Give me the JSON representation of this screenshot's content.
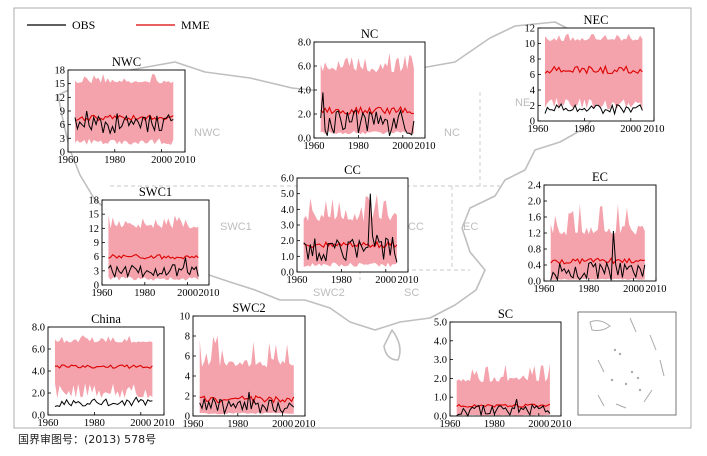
{
  "legend": {
    "obs_label": "OBS",
    "mme_label": "MME"
  },
  "colors": {
    "obs": "#000000",
    "mme": "#dd0000",
    "band": "#f4a3ad",
    "map": "#bfbfbf",
    "region_label": "#bdbdbd",
    "frame": "#000000"
  },
  "region_labels": [
    "NWC",
    "NC",
    "NE",
    "SWC1",
    "CC",
    "EC",
    "SWC2",
    "SC"
  ],
  "annotation": "国界审图号：(2013) 578号",
  "chart_data": [
    {
      "id": "nwc",
      "type": "line",
      "title": "NWC",
      "ylim": [
        0,
        18
      ],
      "yticks": [
        0,
        3,
        6,
        9,
        12,
        15,
        18
      ],
      "ytick_labels": [
        "0",
        "3",
        "6",
        "9",
        "12",
        "15",
        "18"
      ],
      "xlim": [
        1960,
        2010
      ],
      "xticks": [
        1960,
        1980,
        2000,
        2010
      ],
      "xtick_labels": [
        "1960",
        "1980",
        "2000",
        "2010"
      ],
      "band_low": 2.5,
      "band_high": 15.5,
      "band_spike": 2.0,
      "mme_level": 7.5,
      "mme_amp": 0.6,
      "obs_level": 6.5,
      "obs_amp": 2.5,
      "obs_peak_year": 1968,
      "obs_peak": 9,
      "seed": 11,
      "series": [
        "OBS",
        "MME"
      ]
    },
    {
      "id": "nc",
      "type": "line",
      "title": "NC",
      "ylim": [
        0,
        8
      ],
      "yticks": [
        0,
        2,
        4,
        6,
        8
      ],
      "ytick_labels": [
        "0.0",
        "2.0",
        "4.0",
        "6.0",
        "8.0"
      ],
      "xlim": [
        1960,
        2010
      ],
      "xticks": [
        1960,
        1980,
        2000,
        2010
      ],
      "xtick_labels": [
        "1960",
        "1980",
        "2000",
        "2010"
      ],
      "band_low": 0.5,
      "band_high": 5.8,
      "band_spike": 1.8,
      "mme_level": 2.3,
      "mme_amp": 0.3,
      "obs_level": 1.2,
      "obs_amp": 1.1,
      "obs_peak_year": 1964,
      "obs_peak": 3.8,
      "seed": 23,
      "series": [
        "OBS",
        "MME"
      ]
    },
    {
      "id": "nec",
      "type": "line",
      "title": "NEC",
      "ylim": [
        0,
        12
      ],
      "yticks": [
        0,
        2,
        4,
        6,
        8,
        10,
        12
      ],
      "ytick_labels": [
        "0",
        "2",
        "4",
        "6",
        "8",
        "10",
        "12"
      ],
      "xlim": [
        1960,
        2010
      ],
      "xticks": [
        1960,
        1980,
        2000,
        2010
      ],
      "xtick_labels": [
        "1960",
        "1980",
        "2000",
        "2010"
      ],
      "band_low": 2.5,
      "band_high": 10.5,
      "band_spike": 1.0,
      "mme_level": 6.6,
      "mme_amp": 0.5,
      "obs_level": 1.5,
      "obs_amp": 0.6,
      "obs_peak_year": 1970,
      "obs_peak": 2.2,
      "seed": 37,
      "series": [
        "OBS",
        "MME"
      ]
    },
    {
      "id": "swc1",
      "type": "line",
      "title": "SWC1",
      "ylim": [
        0,
        18
      ],
      "yticks": [
        0,
        3,
        6,
        9,
        12,
        15,
        18
      ],
      "ytick_labels": [
        "0",
        "3",
        "6",
        "9",
        "12",
        "15",
        "18"
      ],
      "xlim": [
        1960,
        2010
      ],
      "xticks": [
        1960,
        1980,
        2000,
        2010
      ],
      "xtick_labels": [
        "1960",
        "1980",
        "2000",
        "2010"
      ],
      "band_low": 1.5,
      "band_high": 12.5,
      "band_spike": 3.0,
      "mme_level": 6.0,
      "mme_amp": 0.5,
      "obs_level": 3.0,
      "obs_amp": 1.3,
      "obs_peak_year": 1999,
      "obs_peak": 5.8,
      "seed": 41,
      "series": [
        "OBS",
        "MME"
      ]
    },
    {
      "id": "cc",
      "type": "line",
      "title": "CC",
      "ylim": [
        0,
        6
      ],
      "yticks": [
        0,
        1,
        2,
        3,
        4,
        5,
        6
      ],
      "ytick_labels": [
        "0.0",
        "1.0",
        "2.0",
        "3.0",
        "4.0",
        "5.0",
        "6.0"
      ],
      "xlim": [
        1960,
        2010
      ],
      "xticks": [
        1960,
        1980,
        2000,
        2010
      ],
      "xtick_labels": [
        "1960",
        "1980",
        "2000",
        "2010"
      ],
      "band_low": 0.5,
      "band_high": 3.6,
      "band_spike": 1.8,
      "mme_level": 1.75,
      "mme_amp": 0.2,
      "obs_level": 1.5,
      "obs_amp": 0.9,
      "obs_peak_year": 1993,
      "obs_peak": 5.0,
      "seed": 53,
      "series": [
        "OBS",
        "MME"
      ]
    },
    {
      "id": "ec",
      "type": "line",
      "title": "EC",
      "ylim": [
        0,
        2.4
      ],
      "yticks": [
        0,
        0.4,
        0.8,
        1.2,
        1.6,
        2.0,
        2.4
      ],
      "ytick_labels": [
        "0.0",
        "0.4",
        "0.8",
        "1.2",
        "1.6",
        "2.0",
        "2.4"
      ],
      "xlim": [
        1960,
        2010
      ],
      "xticks": [
        1960,
        1980,
        2000,
        2010
      ],
      "xtick_labels": [
        "1960",
        "1980",
        "2000",
        "2010"
      ],
      "band_low": 0.05,
      "band_high": 1.3,
      "band_spike": 0.8,
      "mme_level": 0.5,
      "mme_amp": 0.07,
      "obs_level": 0.25,
      "obs_amp": 0.25,
      "obs_peak_year": 1991,
      "obs_peak": 1.25,
      "seed": 67,
      "series": [
        "OBS",
        "MME"
      ]
    },
    {
      "id": "china",
      "type": "line",
      "title": "China",
      "ylim": [
        0,
        8
      ],
      "yticks": [
        0,
        2,
        4,
        6,
        8
      ],
      "ytick_labels": [
        "0.0",
        "2.0",
        "4.0",
        "6.0",
        "8.0"
      ],
      "xlim": [
        1960,
        2010
      ],
      "xticks": [
        1960,
        1980,
        2000,
        2010
      ],
      "xtick_labels": [
        "1960",
        "1980",
        "2000",
        "2010"
      ],
      "band_low": 2.5,
      "band_high": 6.7,
      "band_spike": 0.7,
      "mme_level": 4.4,
      "mme_amp": 0.15,
      "obs_level": 1.1,
      "obs_amp": 0.35,
      "obs_peak_year": 1998,
      "obs_peak": 1.6,
      "seed": 79,
      "series": [
        "OBS",
        "MME"
      ]
    },
    {
      "id": "swc2",
      "type": "line",
      "title": "SWC2",
      "ylim": [
        0,
        10
      ],
      "yticks": [
        0,
        2,
        4,
        6,
        8,
        10
      ],
      "ytick_labels": [
        "0",
        "2",
        "4",
        "6",
        "8",
        "10"
      ],
      "xlim": [
        1960,
        2010
      ],
      "xticks": [
        1960,
        1980,
        2000,
        2010
      ],
      "xtick_labels": [
        "1960",
        "1980",
        "2000",
        "2010"
      ],
      "band_low": 0.3,
      "band_high": 5.5,
      "band_spike": 3.5,
      "mme_level": 1.7,
      "mme_amp": 0.35,
      "obs_level": 1.0,
      "obs_amp": 0.8,
      "obs_peak_year": 1985,
      "obs_peak": 2.4,
      "seed": 83,
      "series": [
        "OBS",
        "MME"
      ]
    },
    {
      "id": "sc",
      "type": "line",
      "title": "SC",
      "ylim": [
        0,
        5
      ],
      "yticks": [
        0,
        1,
        2,
        3,
        4,
        5
      ],
      "ytick_labels": [
        "0.0",
        "1.0",
        "2.0",
        "3.0",
        "4.0",
        "5.0"
      ],
      "xlim": [
        1960,
        2010
      ],
      "xticks": [
        1960,
        1980,
        2000,
        2010
      ],
      "xtick_labels": [
        "1960",
        "1980",
        "2000",
        "2010"
      ],
      "band_low": 0.05,
      "band_high": 2.0,
      "band_spike": 1.0,
      "mme_level": 0.55,
      "mme_amp": 0.08,
      "obs_level": 0.3,
      "obs_amp": 0.3,
      "obs_peak_year": 1990,
      "obs_peak": 0.9,
      "seed": 97,
      "series": [
        "OBS",
        "MME"
      ]
    }
  ]
}
